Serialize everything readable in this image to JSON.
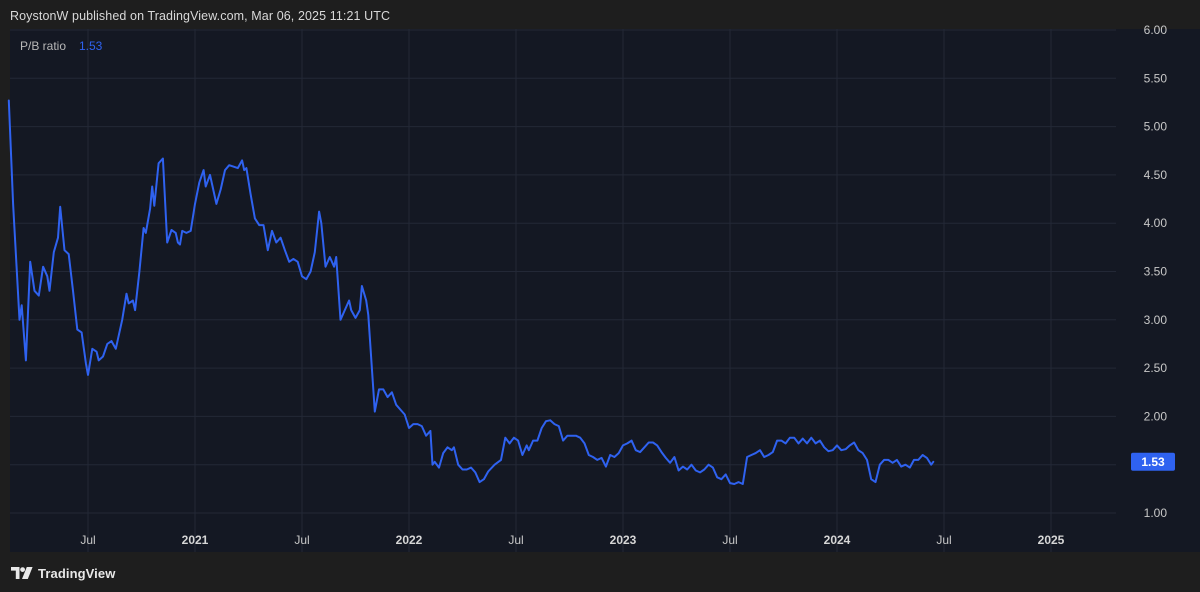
{
  "header": {
    "published_by": "RoystonW published on TradingView.com, Mar 06, 2025 11:21 UTC"
  },
  "footer": {
    "brand": "TradingView",
    "logo_icon": "tradingview-logo-icon"
  },
  "colors": {
    "background": "#1e1e1e",
    "plot_background": "#141823",
    "grid": "#232836",
    "line": "#2f62f0",
    "last_value_badge": "#2f62f0"
  },
  "chart_data": {
    "type": "line",
    "legend": {
      "name": "P/B ratio",
      "value": "1.53"
    },
    "last_value_label": "1.53",
    "y_ticks": [
      "1.00",
      "1.50",
      "2.00",
      "2.50",
      "3.00",
      "3.50",
      "4.00",
      "4.50",
      "5.00",
      "5.50",
      "6.00"
    ],
    "ylim": [
      0.85,
      6.0
    ],
    "x_ticks": [
      {
        "label": "Jul",
        "t": 2020.5,
        "year": false
      },
      {
        "label": "2021",
        "t": 2021.0,
        "year": true
      },
      {
        "label": "Jul",
        "t": 2021.5,
        "year": false
      },
      {
        "label": "2022",
        "t": 2022.0,
        "year": true
      },
      {
        "label": "Jul",
        "t": 2022.5,
        "year": false
      },
      {
        "label": "2023",
        "t": 2023.0,
        "year": true
      },
      {
        "label": "Jul",
        "t": 2023.5,
        "year": false
      },
      {
        "label": "2024",
        "t": 2024.0,
        "year": true
      },
      {
        "label": "Jul",
        "t": 2024.5,
        "year": false
      },
      {
        "label": "2025",
        "t": 2025.0,
        "year": true
      }
    ],
    "xlim": [
      2020.13,
      2025.49
    ],
    "grid": true,
    "series": [
      {
        "values": [
          [
            2020.13,
            5.27
          ],
          [
            2020.15,
            4.2
          ],
          [
            2020.18,
            3.0
          ],
          [
            2020.19,
            3.15
          ],
          [
            2020.21,
            2.58
          ],
          [
            2020.23,
            3.6
          ],
          [
            2020.25,
            3.3
          ],
          [
            2020.27,
            3.25
          ],
          [
            2020.29,
            3.55
          ],
          [
            2020.31,
            3.45
          ],
          [
            2020.32,
            3.3
          ],
          [
            2020.34,
            3.7
          ],
          [
            2020.36,
            3.85
          ],
          [
            2020.37,
            4.17
          ],
          [
            2020.39,
            3.72
          ],
          [
            2020.41,
            3.68
          ],
          [
            2020.43,
            3.3
          ],
          [
            2020.45,
            2.9
          ],
          [
            2020.47,
            2.87
          ],
          [
            2020.49,
            2.55
          ],
          [
            2020.5,
            2.43
          ],
          [
            2020.52,
            2.7
          ],
          [
            2020.54,
            2.67
          ],
          [
            2020.55,
            2.58
          ],
          [
            2020.57,
            2.62
          ],
          [
            2020.59,
            2.75
          ],
          [
            2020.61,
            2.78
          ],
          [
            2020.63,
            2.7
          ],
          [
            2020.66,
            3.0
          ],
          [
            2020.68,
            3.27
          ],
          [
            2020.69,
            3.17
          ],
          [
            2020.71,
            3.2
          ],
          [
            2020.72,
            3.1
          ],
          [
            2020.74,
            3.5
          ],
          [
            2020.76,
            3.95
          ],
          [
            2020.77,
            3.9
          ],
          [
            2020.79,
            4.15
          ],
          [
            2020.8,
            4.38
          ],
          [
            2020.81,
            4.18
          ],
          [
            2020.83,
            4.62
          ],
          [
            2020.85,
            4.67
          ],
          [
            2020.87,
            3.8
          ],
          [
            2020.89,
            3.93
          ],
          [
            2020.91,
            3.9
          ],
          [
            2020.92,
            3.8
          ],
          [
            2020.93,
            3.78
          ],
          [
            2020.94,
            3.92
          ],
          [
            2020.96,
            3.9
          ],
          [
            2020.98,
            3.92
          ],
          [
            2021.0,
            4.2
          ],
          [
            2021.02,
            4.42
          ],
          [
            2021.04,
            4.55
          ],
          [
            2021.05,
            4.38
          ],
          [
            2021.07,
            4.5
          ],
          [
            2021.1,
            4.2
          ],
          [
            2021.12,
            4.35
          ],
          [
            2021.14,
            4.55
          ],
          [
            2021.16,
            4.6
          ],
          [
            2021.2,
            4.57
          ],
          [
            2021.22,
            4.65
          ],
          [
            2021.23,
            4.55
          ],
          [
            2021.24,
            4.57
          ],
          [
            2021.26,
            4.3
          ],
          [
            2021.28,
            4.05
          ],
          [
            2021.3,
            3.98
          ],
          [
            2021.32,
            3.98
          ],
          [
            2021.34,
            3.72
          ],
          [
            2021.36,
            3.92
          ],
          [
            2021.38,
            3.8
          ],
          [
            2021.4,
            3.85
          ],
          [
            2021.42,
            3.72
          ],
          [
            2021.44,
            3.6
          ],
          [
            2021.46,
            3.63
          ],
          [
            2021.48,
            3.6
          ],
          [
            2021.5,
            3.45
          ],
          [
            2021.52,
            3.42
          ],
          [
            2021.54,
            3.5
          ],
          [
            2021.56,
            3.7
          ],
          [
            2021.58,
            4.12
          ],
          [
            2021.59,
            4.0
          ],
          [
            2021.61,
            3.55
          ],
          [
            2021.63,
            3.65
          ],
          [
            2021.65,
            3.55
          ],
          [
            2021.66,
            3.65
          ],
          [
            2021.68,
            3.0
          ],
          [
            2021.7,
            3.1
          ],
          [
            2021.72,
            3.2
          ],
          [
            2021.73,
            3.1
          ],
          [
            2021.75,
            3.02
          ],
          [
            2021.77,
            3.1
          ],
          [
            2021.78,
            3.35
          ],
          [
            2021.8,
            3.2
          ],
          [
            2021.81,
            3.05
          ],
          [
            2021.84,
            2.05
          ],
          [
            2021.86,
            2.28
          ],
          [
            2021.88,
            2.28
          ],
          [
            2021.9,
            2.2
          ],
          [
            2021.92,
            2.25
          ],
          [
            2021.94,
            2.12
          ],
          [
            2021.96,
            2.07
          ],
          [
            2021.98,
            2.02
          ],
          [
            2022.0,
            1.88
          ],
          [
            2022.02,
            1.92
          ],
          [
            2022.04,
            1.92
          ],
          [
            2022.06,
            1.9
          ],
          [
            2022.08,
            1.8
          ],
          [
            2022.1,
            1.85
          ],
          [
            2022.11,
            1.5
          ],
          [
            2022.12,
            1.53
          ],
          [
            2022.14,
            1.47
          ],
          [
            2022.16,
            1.62
          ],
          [
            2022.18,
            1.68
          ],
          [
            2022.2,
            1.65
          ],
          [
            2022.21,
            1.68
          ],
          [
            2022.23,
            1.5
          ],
          [
            2022.25,
            1.45
          ],
          [
            2022.27,
            1.45
          ],
          [
            2022.29,
            1.47
          ],
          [
            2022.31,
            1.42
          ],
          [
            2022.33,
            1.32
          ],
          [
            2022.35,
            1.35
          ],
          [
            2022.37,
            1.43
          ],
          [
            2022.4,
            1.5
          ],
          [
            2022.43,
            1.55
          ],
          [
            2022.45,
            1.78
          ],
          [
            2022.47,
            1.72
          ],
          [
            2022.49,
            1.78
          ],
          [
            2022.51,
            1.75
          ],
          [
            2022.53,
            1.6
          ],
          [
            2022.55,
            1.7
          ],
          [
            2022.56,
            1.65
          ],
          [
            2022.58,
            1.75
          ],
          [
            2022.6,
            1.75
          ],
          [
            2022.62,
            1.88
          ],
          [
            2022.64,
            1.95
          ],
          [
            2022.66,
            1.96
          ],
          [
            2022.68,
            1.92
          ],
          [
            2022.7,
            1.9
          ],
          [
            2022.72,
            1.75
          ],
          [
            2022.74,
            1.8
          ],
          [
            2022.76,
            1.8
          ],
          [
            2022.78,
            1.8
          ],
          [
            2022.8,
            1.78
          ],
          [
            2022.82,
            1.72
          ],
          [
            2022.84,
            1.6
          ],
          [
            2022.86,
            1.58
          ],
          [
            2022.88,
            1.55
          ],
          [
            2022.9,
            1.57
          ],
          [
            2022.92,
            1.48
          ],
          [
            2022.94,
            1.6
          ],
          [
            2022.96,
            1.58
          ],
          [
            2022.98,
            1.62
          ],
          [
            2023.0,
            1.7
          ],
          [
            2023.02,
            1.72
          ],
          [
            2023.04,
            1.75
          ],
          [
            2023.06,
            1.65
          ],
          [
            2023.08,
            1.63
          ],
          [
            2023.1,
            1.68
          ],
          [
            2023.12,
            1.73
          ],
          [
            2023.14,
            1.73
          ],
          [
            2023.16,
            1.7
          ],
          [
            2023.18,
            1.63
          ],
          [
            2023.2,
            1.57
          ],
          [
            2023.22,
            1.52
          ],
          [
            2023.24,
            1.58
          ],
          [
            2023.26,
            1.44
          ],
          [
            2023.28,
            1.48
          ],
          [
            2023.3,
            1.45
          ],
          [
            2023.32,
            1.5
          ],
          [
            2023.34,
            1.44
          ],
          [
            2023.36,
            1.42
          ],
          [
            2023.38,
            1.45
          ],
          [
            2023.4,
            1.5
          ],
          [
            2023.42,
            1.47
          ],
          [
            2023.44,
            1.37
          ],
          [
            2023.46,
            1.35
          ],
          [
            2023.48,
            1.4
          ],
          [
            2023.5,
            1.31
          ],
          [
            2023.52,
            1.3
          ],
          [
            2023.54,
            1.32
          ],
          [
            2023.56,
            1.3
          ],
          [
            2023.58,
            1.58
          ],
          [
            2023.6,
            1.6
          ],
          [
            2023.62,
            1.62
          ],
          [
            2023.64,
            1.65
          ],
          [
            2023.66,
            1.58
          ],
          [
            2023.68,
            1.6
          ],
          [
            2023.7,
            1.63
          ],
          [
            2023.72,
            1.75
          ],
          [
            2023.74,
            1.75
          ],
          [
            2023.76,
            1.72
          ],
          [
            2023.78,
            1.78
          ],
          [
            2023.8,
            1.78
          ],
          [
            2023.82,
            1.72
          ],
          [
            2023.84,
            1.77
          ],
          [
            2023.86,
            1.72
          ],
          [
            2023.88,
            1.78
          ],
          [
            2023.9,
            1.72
          ],
          [
            2023.92,
            1.75
          ],
          [
            2023.94,
            1.68
          ],
          [
            2023.96,
            1.64
          ],
          [
            2023.98,
            1.65
          ],
          [
            2024.0,
            1.7
          ],
          [
            2024.02,
            1.65
          ],
          [
            2024.04,
            1.66
          ],
          [
            2024.06,
            1.7
          ],
          [
            2024.08,
            1.73
          ],
          [
            2024.1,
            1.65
          ],
          [
            2024.12,
            1.62
          ],
          [
            2024.14,
            1.55
          ],
          [
            2024.16,
            1.35
          ],
          [
            2024.18,
            1.32
          ],
          [
            2024.2,
            1.5
          ],
          [
            2024.22,
            1.55
          ],
          [
            2024.24,
            1.55
          ],
          [
            2024.26,
            1.52
          ],
          [
            2024.28,
            1.55
          ],
          [
            2024.3,
            1.48
          ],
          [
            2024.32,
            1.5
          ],
          [
            2024.34,
            1.47
          ],
          [
            2024.36,
            1.55
          ],
          [
            2024.38,
            1.55
          ],
          [
            2024.4,
            1.6
          ],
          [
            2024.42,
            1.57
          ],
          [
            2024.44,
            1.5
          ],
          [
            2024.45,
            1.53
          ]
        ]
      }
    ]
  }
}
